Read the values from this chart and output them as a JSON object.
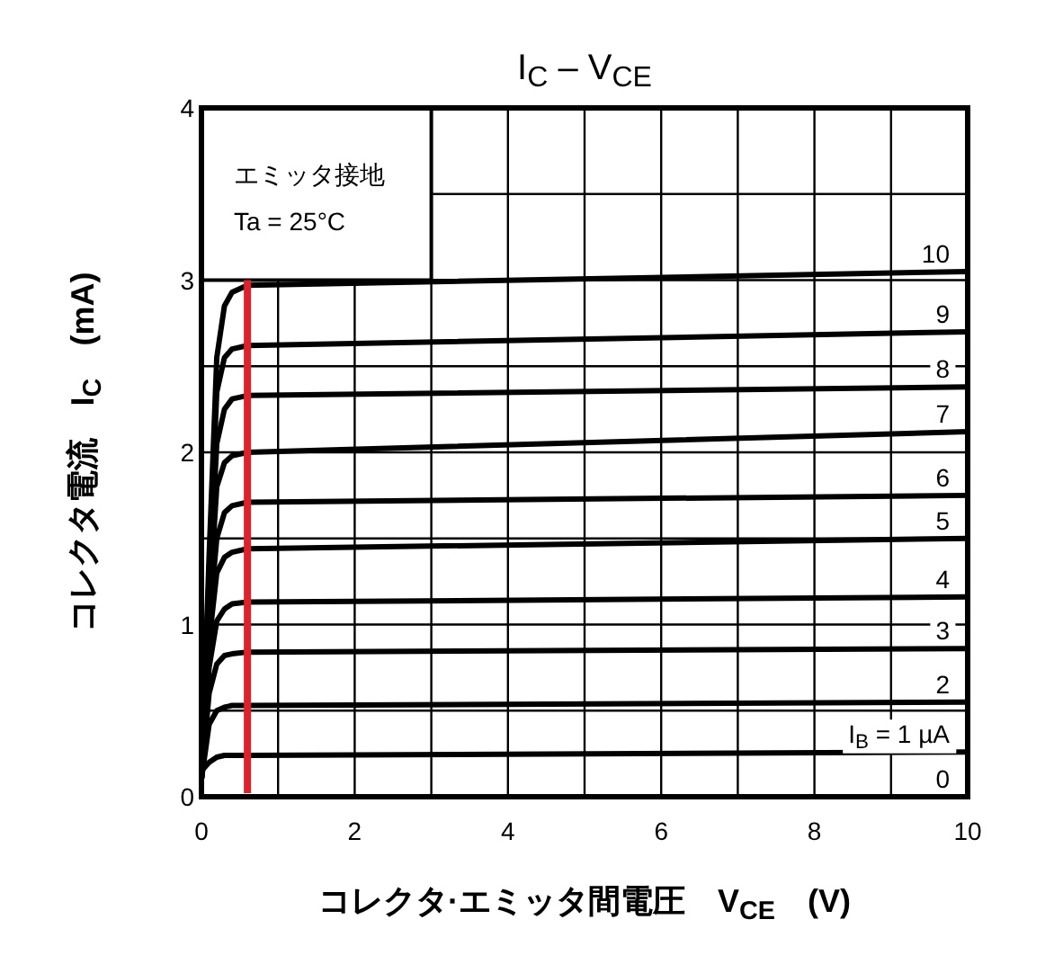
{
  "chart_data": {
    "type": "line",
    "title": "I$_{C}$ – V$_{CE}$",
    "xlabel": "コレクタ·エミッタ間電圧　V$_{CE}$　(V)",
    "ylabel": "コレクタ電流　I$_{C}$　(mA)",
    "x": [
      0,
      0.1,
      0.2,
      0.3,
      0.4,
      0.6,
      10
    ],
    "series": [
      {
        "name": "10",
        "color": "#000000",
        "values": [
          0.1,
          1.4,
          2.55,
          2.85,
          2.93,
          2.97,
          3.05
        ]
      },
      {
        "name": "9",
        "color": "#000000",
        "values": [
          0.1,
          1.3,
          2.35,
          2.55,
          2.6,
          2.62,
          2.7
        ]
      },
      {
        "name": "8",
        "color": "#000000",
        "values": [
          0.1,
          1.2,
          2.05,
          2.25,
          2.31,
          2.33,
          2.38
        ]
      },
      {
        "name": "7",
        "color": "#000000",
        "values": [
          0.1,
          1.1,
          1.8,
          1.94,
          1.98,
          2.0,
          2.12
        ]
      },
      {
        "name": "6",
        "color": "#000000",
        "values": [
          0.1,
          1.0,
          1.5,
          1.65,
          1.69,
          1.71,
          1.75
        ]
      },
      {
        "name": "5",
        "color": "#000000",
        "values": [
          0.1,
          0.9,
          1.3,
          1.39,
          1.42,
          1.44,
          1.5
        ]
      },
      {
        "name": "4",
        "color": "#000000",
        "values": [
          0.1,
          0.75,
          1.02,
          1.09,
          1.12,
          1.13,
          1.16
        ]
      },
      {
        "name": "3",
        "color": "#000000",
        "values": [
          0.1,
          0.6,
          0.77,
          0.82,
          0.83,
          0.84,
          0.86
        ]
      },
      {
        "name": "2",
        "color": "#000000",
        "values": [
          0.1,
          0.42,
          0.5,
          0.52,
          0.53,
          0.53,
          0.55
        ]
      },
      {
        "name": "I$_{B}$ = 1 µA",
        "color": "#000000",
        "values": [
          0.15,
          0.2,
          0.23,
          0.24,
          0.24,
          0.24,
          0.26
        ]
      }
    ],
    "xlim": [
      0,
      10
    ],
    "ylim": [
      0,
      4
    ],
    "xticks": [
      0,
      {
        "value": 1,
        "label": null
      },
      2,
      {
        "value": 3,
        "label": null
      },
      4,
      {
        "value": 5,
        "label": null
      },
      6,
      {
        "value": 7,
        "label": null
      },
      8,
      {
        "value": 9,
        "label": null
      },
      10
    ],
    "yticks": [
      0,
      {
        "value": 0.5,
        "label": null
      },
      1,
      {
        "value": 1.5,
        "label": null
      },
      2,
      {
        "value": 2.5,
        "label": null
      },
      3,
      {
        "value": 3.5,
        "label": null
      },
      4
    ],
    "grid": true,
    "legend": false,
    "marker": "none",
    "line_style": "solid",
    "ref_lines": [
      {
        "axis": "x",
        "value": 0.6,
        "color": "#e0202a"
      }
    ],
    "annotations": [
      "エミッタ接地",
      "Ta = 25°C",
      "0"
    ]
  }
}
